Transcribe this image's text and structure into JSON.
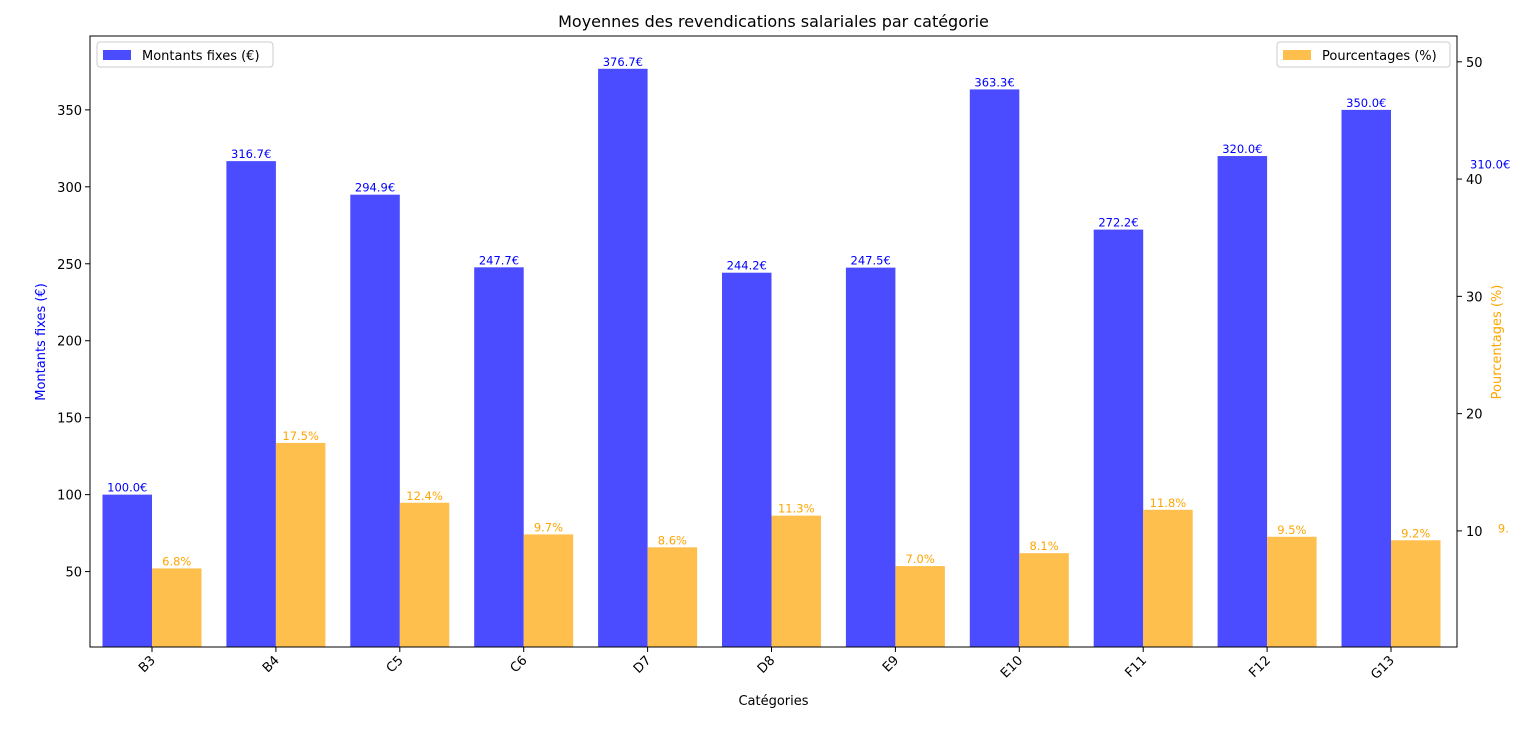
{
  "chart_data": {
    "type": "bar",
    "title": "Moyennes des revendications salariales par catégorie",
    "xlabel": "Catégories",
    "ylabel_left": "Montants fixes (€)",
    "ylabel_right": "Pourcentages (%)",
    "categories": [
      "B3",
      "B4",
      "C5",
      "C6",
      "D7",
      "D8",
      "E9",
      "E10",
      "F11",
      "F12",
      "G13"
    ],
    "series": [
      {
        "name": "Montants fixes (€)",
        "axis": "left",
        "color": "#4b4bff",
        "label_color": "#0000ff",
        "values": [
          100.0,
          316.7,
          294.9,
          247.7,
          376.7,
          244.2,
          247.5,
          363.3,
          272.2,
          320.0,
          350.0
        ],
        "labels": [
          "100.0€",
          "316.7€",
          "294.9€",
          "247.7€",
          "376.7€",
          "244.2€",
          "247.5€",
          "363.3€",
          "272.2€",
          "320.0€",
          "350.0€"
        ]
      },
      {
        "name": "Pourcentages (%)",
        "axis": "right",
        "color": "#ffbf4d",
        "label_color": "#ffa500",
        "values": [
          6.8,
          17.5,
          12.4,
          9.7,
          8.6,
          11.3,
          7.0,
          8.1,
          11.8,
          9.5,
          9.2
        ],
        "labels": [
          "6.8%",
          "17.5%",
          "12.4%",
          "9.7%",
          "8.6%",
          "11.3%",
          "7.0%",
          "8.1%",
          "11.8%",
          "9.5%",
          "9.2%"
        ]
      }
    ],
    "overflow_labels": [
      {
        "text": "310.0€",
        "axis": "left",
        "value": 310.0,
        "series": 0
      },
      {
        "text": "9.",
        "axis": "right",
        "value": 9.6,
        "series": 1
      }
    ],
    "ylim_left": [
      1,
      398
    ],
    "yticks_left": [
      50,
      100,
      150,
      200,
      250,
      300,
      350
    ],
    "ylim_right": [
      0.1,
      52.2
    ],
    "yticks_right": [
      10,
      20,
      30,
      40,
      50
    ],
    "legend_left": {
      "label": "Montants fixes (€)",
      "placement": "upper-left"
    },
    "legend_right": {
      "label": "Pourcentages (%)",
      "placement": "upper-right"
    },
    "grid": false
  }
}
